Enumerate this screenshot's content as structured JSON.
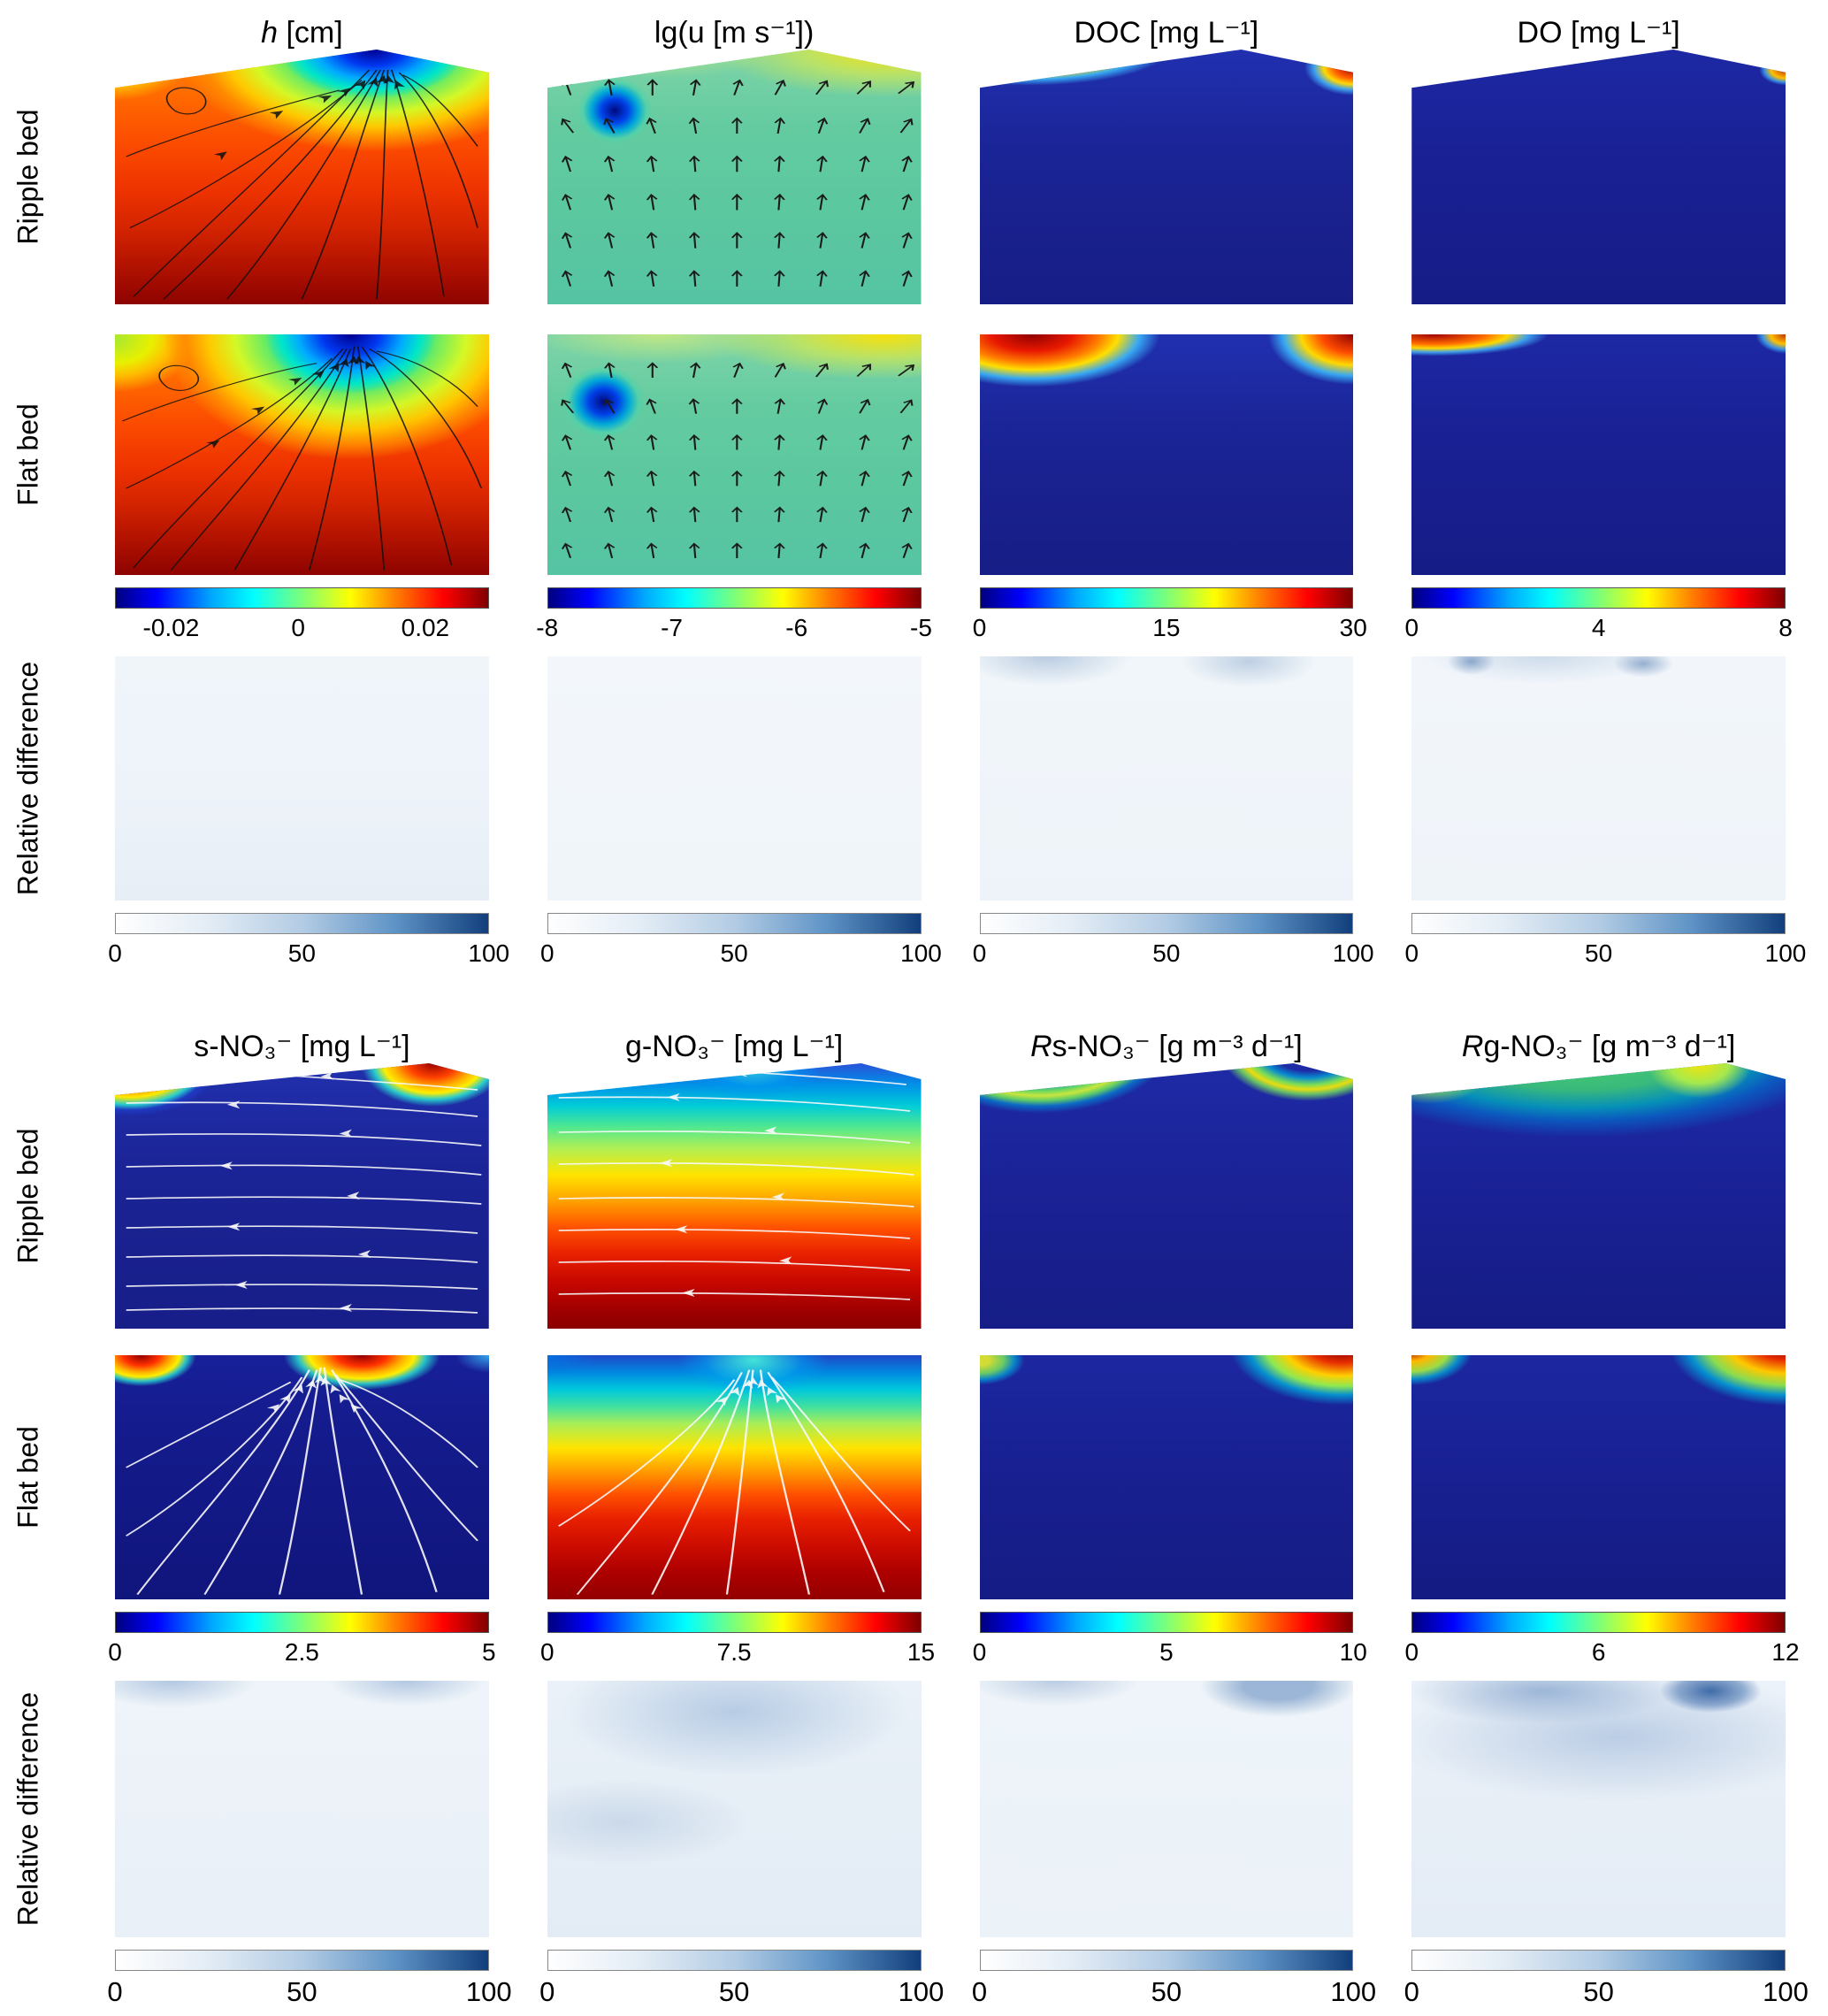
{
  "row_labels": {
    "ripple": "Ripple bed",
    "flat": "Flat bed",
    "diff": "Relative difference"
  },
  "sections": [
    {
      "columns": [
        {
          "title_em": "h",
          "title_rest": " [cm]",
          "ticks": [
            "-0.02",
            "0",
            "0.02"
          ],
          "diff_ticks": [
            "0",
            "50",
            "100"
          ]
        },
        {
          "title_em": "",
          "title_rest": "lg(u [m s⁻¹])",
          "ticks": [
            "-8",
            "-7",
            "-6",
            "-5"
          ],
          "diff_ticks": [
            "0",
            "50",
            "100"
          ]
        },
        {
          "title_em": "",
          "title_rest": "DOC [mg L⁻¹]",
          "ticks": [
            "0",
            "15",
            "30"
          ],
          "diff_ticks": [
            "0",
            "50",
            "100"
          ]
        },
        {
          "title_em": "",
          "title_rest": "DO [mg L⁻¹]",
          "ticks": [
            "0",
            "4",
            "8"
          ],
          "diff_ticks": [
            "0",
            "50",
            "100"
          ]
        }
      ]
    },
    {
      "columns": [
        {
          "title_em": "",
          "title_rest": "s-NO₃⁻ [mg L⁻¹]",
          "ticks": [
            "0",
            "2.5",
            "5"
          ],
          "diff_ticks": [
            "0",
            "50",
            "100"
          ]
        },
        {
          "title_em": "",
          "title_rest": "g-NO₃⁻ [mg L⁻¹]",
          "ticks": [
            "0",
            "7.5",
            "15"
          ],
          "diff_ticks": [
            "0",
            "50",
            "100"
          ]
        },
        {
          "title_em": "R",
          "title_rest": "s-NO₃⁻ [g m⁻³ d⁻¹]",
          "ticks": [
            "0",
            "5",
            "10"
          ],
          "diff_ticks": [
            "0",
            "50",
            "100"
          ]
        },
        {
          "title_em": "R",
          "title_rest": "g-NO₃⁻ [g m⁻³ d⁻¹]",
          "ticks": [
            "0",
            "6",
            "12"
          ],
          "diff_ticks": [
            "0",
            "50",
            "100"
          ]
        }
      ]
    }
  ],
  "colors": {
    "jet_low": "#00007f",
    "jet_high": "#7f0000",
    "diff_low": "#ffffff",
    "diff_high": "#123f7c",
    "deep_blue_field": "#1a2195",
    "deep_red_field": "#8a0000"
  },
  "chart_data": [
    {
      "type": "heatmap",
      "variable": "h",
      "title": "h [cm]",
      "rows": [
        "Ripple bed",
        "Flat bed"
      ],
      "colormap": "jet",
      "colorbar_ticks": [
        -0.02,
        0,
        0.02
      ],
      "overlay": "black streamlines with arrows converging at bed crest",
      "relative_difference": {
        "colormap": "white-blue",
        "colorbar_ticks": [
          0,
          50,
          100
        ]
      }
    },
    {
      "type": "heatmap",
      "variable": "lg(u)",
      "title": "lg(u [m s⁻¹])",
      "rows": [
        "Ripple bed",
        "Flat bed"
      ],
      "colormap": "jet",
      "colorbar_ticks": [
        -8,
        -7,
        -6,
        -5
      ],
      "overlay": "black velocity quiver arrows; low-velocity vortex upper left",
      "relative_difference": {
        "colormap": "white-blue",
        "colorbar_ticks": [
          0,
          50,
          100
        ]
      }
    },
    {
      "type": "heatmap",
      "variable": "DOC",
      "title": "DOC [mg L⁻¹]",
      "rows": [
        "Ripple bed",
        "Flat bed"
      ],
      "colormap": "jet",
      "colorbar_ticks": [
        0,
        15,
        30
      ],
      "relative_difference": {
        "colormap": "white-blue",
        "colorbar_ticks": [
          0,
          50,
          100
        ]
      }
    },
    {
      "type": "heatmap",
      "variable": "DO",
      "title": "DO [mg L⁻¹]",
      "rows": [
        "Ripple bed",
        "Flat bed"
      ],
      "colormap": "jet",
      "colorbar_ticks": [
        0,
        4,
        8
      ],
      "relative_difference": {
        "colormap": "white-blue",
        "colorbar_ticks": [
          0,
          50,
          100
        ]
      }
    },
    {
      "type": "heatmap",
      "variable": "s-NO₃⁻",
      "title": "s-NO₃⁻ [mg L⁻¹]",
      "rows": [
        "Ripple bed",
        "Flat bed"
      ],
      "colormap": "jet",
      "colorbar_ticks": [
        0,
        2.5,
        5
      ],
      "overlay": "white flow streamlines with arrows",
      "relative_difference": {
        "colormap": "white-blue",
        "colorbar_ticks": [
          0,
          50,
          100
        ]
      }
    },
    {
      "type": "heatmap",
      "variable": "g-NO₃⁻",
      "title": "g-NO₃⁻ [mg L⁻¹]",
      "rows": [
        "Ripple bed",
        "Flat bed"
      ],
      "colormap": "jet",
      "colorbar_ticks": [
        0,
        7.5,
        15
      ],
      "overlay": "white flow streamlines with arrows",
      "relative_difference": {
        "colormap": "white-blue",
        "colorbar_ticks": [
          0,
          50,
          100
        ]
      }
    },
    {
      "type": "heatmap",
      "variable": "Rs-NO₃⁻",
      "title": "Rs-NO₃⁻ [g m⁻³ d⁻¹]",
      "rows": [
        "Ripple bed",
        "Flat bed"
      ],
      "colormap": "jet",
      "colorbar_ticks": [
        0,
        5,
        10
      ],
      "relative_difference": {
        "colormap": "white-blue",
        "colorbar_ticks": [
          0,
          50,
          100
        ]
      }
    },
    {
      "type": "heatmap",
      "variable": "Rg-NO₃⁻",
      "title": "Rg-NO₃⁻ [g m⁻³ d⁻¹]",
      "rows": [
        "Ripple bed",
        "Flat bed"
      ],
      "colormap": "jet",
      "colorbar_ticks": [
        0,
        6,
        12
      ],
      "relative_difference": {
        "colormap": "white-blue",
        "colorbar_ticks": [
          0,
          50,
          100
        ]
      }
    }
  ]
}
